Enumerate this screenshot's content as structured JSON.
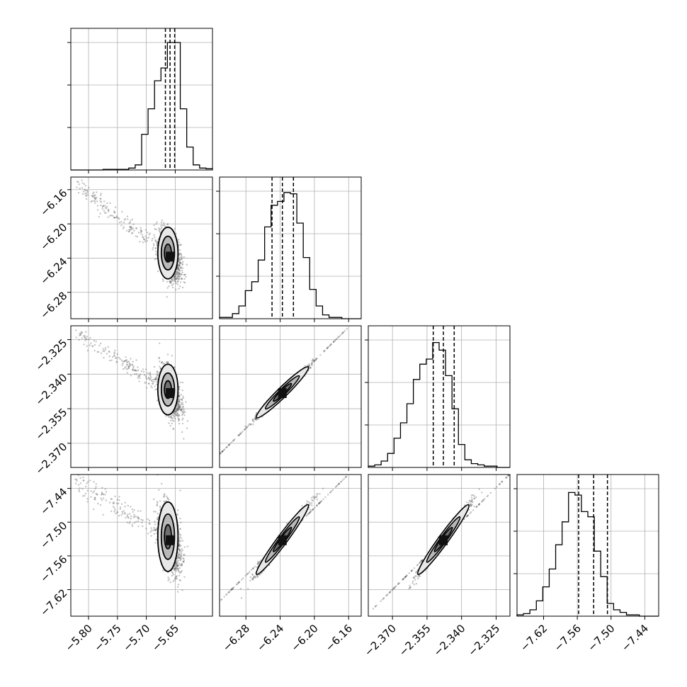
{
  "chart_data": {
    "type": "corner",
    "grid": true,
    "parameters": [
      {
        "ticks": [
          -5.8,
          -5.75,
          -5.7,
          -5.65
        ],
        "tick_labels": [
          "−5.80",
          "−5.75",
          "−5.70",
          "−5.65"
        ],
        "range": [
          -5.8306,
          -5.5856
        ],
        "quantiles": [
          -5.667,
          -5.659,
          -5.651
        ],
        "median": -5.659,
        "hist": [
          0,
          0,
          0,
          0,
          0,
          0.005,
          0.005,
          0.005,
          0.005,
          0.015,
          0.04,
          0.28,
          0.48,
          0.7,
          0.8,
          1.0,
          1.0,
          0.48,
          0.18,
          0.04,
          0.015,
          0.01
        ]
      },
      {
        "ticks": [
          -6.28,
          -6.24,
          -6.2,
          -6.16
        ],
        "tick_labels": [
          "−6.28",
          "−6.24",
          "−6.20",
          "−6.16"
        ],
        "range": [
          -6.3108,
          -6.1453
        ],
        "quantiles": [
          -6.2495,
          -6.2374,
          -6.2245
        ],
        "median": -6.2374,
        "hist": [
          0.01,
          0.01,
          0.04,
          0.1,
          0.22,
          0.29,
          0.46,
          0.72,
          0.89,
          0.92,
          0.99,
          0.98,
          0.75,
          0.48,
          0.23,
          0.1,
          0.03,
          0.01,
          0.01,
          0,
          0,
          0
        ]
      },
      {
        "ticks": [
          -2.37,
          -2.355,
          -2.34,
          -2.325
        ],
        "tick_labels": [
          "−2.370",
          "−2.355",
          "−2.340",
          "−2.325"
        ],
        "range": [
          -2.3805,
          -2.319
        ],
        "quantiles": [
          -2.3523,
          -2.3479,
          -2.3432
        ],
        "median": -2.3479,
        "hist": [
          0.01,
          0.02,
          0.05,
          0.11,
          0.23,
          0.35,
          0.5,
          0.69,
          0.81,
          0.85,
          0.98,
          0.92,
          0.72,
          0.46,
          0.18,
          0.06,
          0.03,
          0.02,
          0.01,
          0.01,
          0,
          0
        ]
      },
      {
        "ticks": [
          -7.62,
          -7.56,
          -7.5,
          -7.44
        ],
        "tick_labels": [
          "−7.62",
          "−7.56",
          "−7.50",
          "−7.44"
        ],
        "range": [
          -7.6672,
          -7.4153
        ],
        "quantiles": [
          -7.5576,
          -7.5309,
          -7.5064
        ],
        "median": -7.5309,
        "hist": [
          0.01,
          0.02,
          0.05,
          0.12,
          0.23,
          0.37,
          0.56,
          0.74,
          0.97,
          0.95,
          0.82,
          0.78,
          0.51,
          0.31,
          0.1,
          0.05,
          0.03,
          0.01,
          0.01,
          0,
          0,
          0
        ]
      }
    ]
  }
}
